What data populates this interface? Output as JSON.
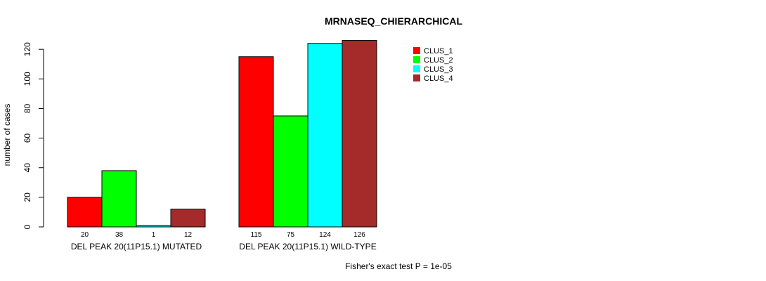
{
  "chart_data": {
    "type": "bar",
    "title": "MRNASEQ_CHIERARCHICAL",
    "ylabel": "number of cases",
    "xlabel": "",
    "ylim": [
      0,
      126
    ],
    "yticks": [
      0,
      20,
      40,
      60,
      80,
      100,
      120
    ],
    "grid": false,
    "legend_position": "top-right",
    "groups": [
      "DEL PEAK 20(11P15.1) MUTATED",
      "DEL PEAK 20(11P15.1) WILD-TYPE"
    ],
    "series": [
      {
        "name": "CLUS_1",
        "color": "#ff0000",
        "values": [
          20,
          115
        ]
      },
      {
        "name": "CLUS_2",
        "color": "#00ff00",
        "values": [
          38,
          75
        ]
      },
      {
        "name": "CLUS_3",
        "color": "#00ffff",
        "values": [
          1,
          124
        ]
      },
      {
        "name": "CLUS_4",
        "color": "#a52a2a",
        "values": [
          12,
          126
        ]
      }
    ],
    "bar_labels": [
      [
        "20",
        "38",
        "1",
        "12"
      ],
      [
        "115",
        "75",
        "124",
        "126"
      ]
    ],
    "annotation": "Fisher's exact test P = 1e-05"
  }
}
